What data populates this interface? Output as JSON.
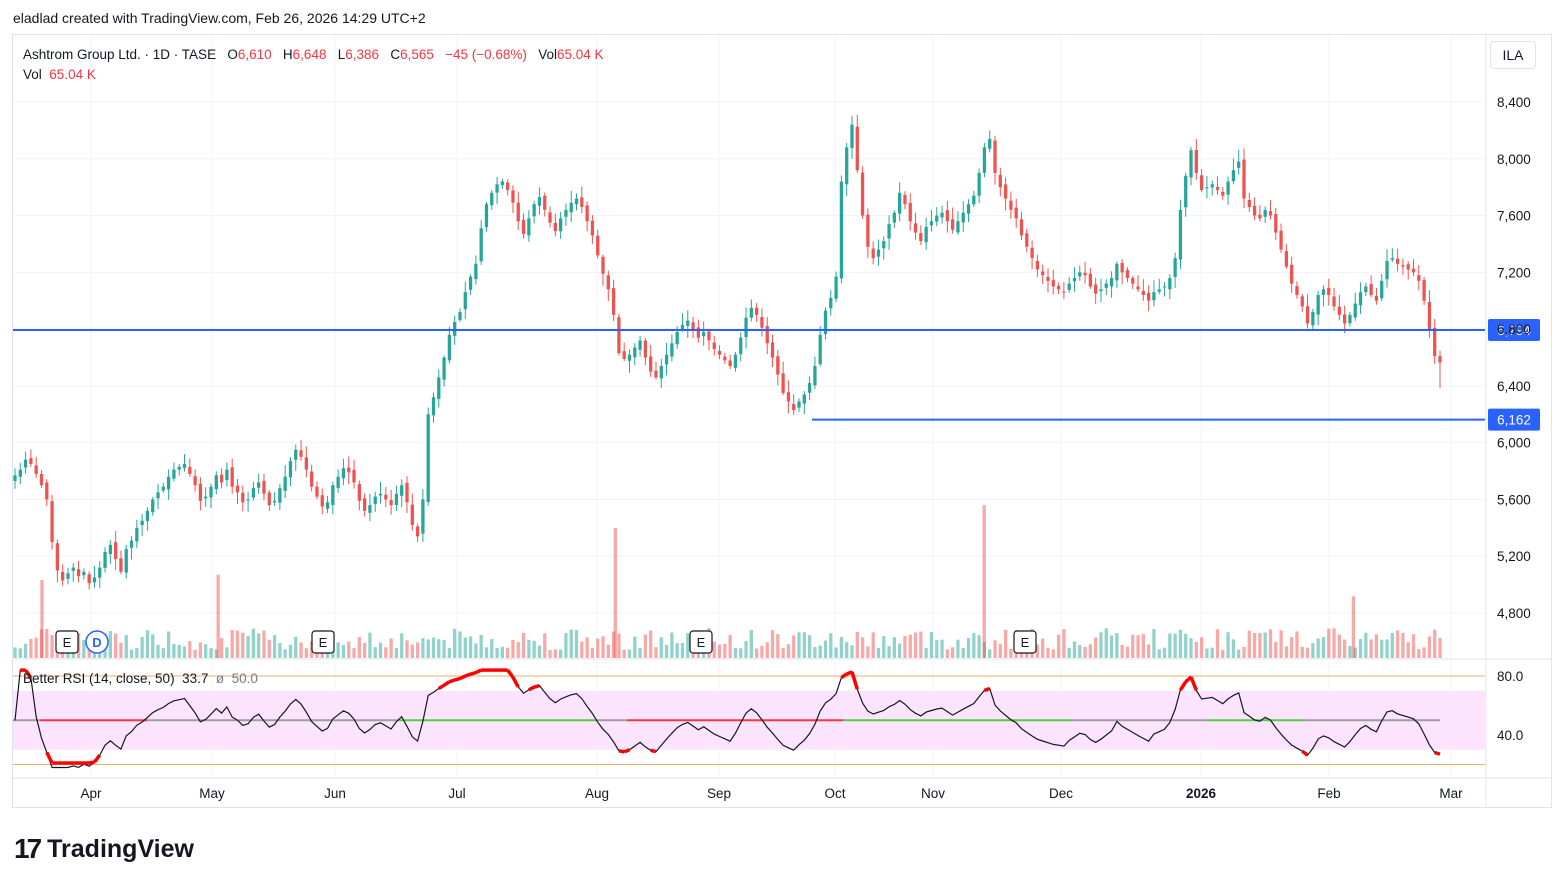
{
  "header": {
    "caption": "eladlad created with TradingView.com, Feb 26, 2026 14:29 UTC+2"
  },
  "legend": {
    "symbol": "Ashtrom Group Ltd. · 1D · TASE",
    "o_label": "O",
    "o_value": "6,610",
    "h_label": "H",
    "h_value": "6,648",
    "l_label": "L",
    "l_value": "6,386",
    "c_label": "C",
    "c_value": "6,565",
    "change": "−45 (−0.68%)",
    "vol_label": "Vol",
    "vol_value": "65.04 K",
    "vol2_label": "Vol",
    "vol2_value": "65.04 K"
  },
  "currency_button": "ILA",
  "rsi_legend": {
    "name": "Better RSI (14, close, 50)",
    "value": "33.7",
    "sep": "ø",
    "mid": "50.0"
  },
  "brand": {
    "logo": "17",
    "name": "TradingView"
  },
  "colors": {
    "up": "#26a69a",
    "down": "#ef5350",
    "line": "#2962ff",
    "rsi": "#131722",
    "rsi_band": "#fce4ff"
  },
  "chart_data": [
    {
      "type": "candlestick",
      "y_ticks": [
        "8,400",
        "8,000",
        "7,600",
        "7,200",
        "6,800",
        "6,400",
        "6,000",
        "5,600",
        "5,200",
        "4,800"
      ],
      "y_tick_values": [
        8400,
        8000,
        7600,
        7200,
        6800,
        6400,
        6000,
        5600,
        5200,
        4800
      ],
      "x_ticks": [
        "Apr",
        "May",
        "Jun",
        "Jul",
        "Aug",
        "Sep",
        "Oct",
        "Nov",
        "Dec",
        "2026",
        "Feb",
        "Mar"
      ],
      "horizontal_lines": [
        {
          "value": 6794,
          "label": "6,794"
        },
        {
          "value": 6162,
          "label": "6,162"
        }
      ],
      "event_markers": [
        {
          "label": "E",
          "month_index": 0.0
        },
        {
          "label": "D",
          "month_index": 0.05
        },
        {
          "label": "E",
          "month_index": 2.0
        },
        {
          "label": "E",
          "month_index": 5.0
        },
        {
          "label": "E",
          "month_index": 7.6
        }
      ],
      "last": {
        "open": 6610,
        "high": 6648,
        "low": 6386,
        "close": 6565
      },
      "close_series": [
        5770,
        5810,
        5880,
        5850,
        5780,
        5700,
        5600,
        5300,
        5100,
        5030,
        5080,
        5120,
        5060,
        5090,
        5010,
        5050,
        5120,
        5230,
        5280,
        5180,
        5090,
        5250,
        5310,
        5400,
        5450,
        5520,
        5600,
        5650,
        5690,
        5760,
        5810,
        5830,
        5850,
        5780,
        5700,
        5590,
        5620,
        5690,
        5770,
        5720,
        5810,
        5690,
        5650,
        5580,
        5600,
        5680,
        5720,
        5640,
        5560,
        5590,
        5680,
        5760,
        5870,
        5950,
        5900,
        5810,
        5690,
        5620,
        5550,
        5580,
        5700,
        5760,
        5820,
        5790,
        5720,
        5590,
        5520,
        5560,
        5620,
        5640,
        5600,
        5560,
        5640,
        5700,
        5580,
        5420,
        5340,
        5600,
        6200,
        6320,
        6460,
        6600,
        6760,
        6850,
        6920,
        7060,
        7170,
        7260,
        7510,
        7680,
        7760,
        7820,
        7840,
        7780,
        7690,
        7560,
        7470,
        7580,
        7680,
        7730,
        7640,
        7550,
        7490,
        7580,
        7640,
        7690,
        7720,
        7660,
        7560,
        7460,
        7320,
        7190,
        7080,
        6900,
        6630,
        6590,
        6620,
        6670,
        6720,
        6600,
        6500,
        6460,
        6540,
        6620,
        6700,
        6780,
        6830,
        6860,
        6800,
        6740,
        6780,
        6720,
        6660,
        6620,
        6580,
        6540,
        6620,
        6740,
        6880,
        6950,
        6900,
        6810,
        6700,
        6600,
        6480,
        6350,
        6290,
        6230,
        6290,
        6340,
        6420,
        6540,
        6760,
        6930,
        7020,
        7170,
        7840,
        8080,
        8240,
        7920,
        7600,
        7380,
        7300,
        7360,
        7420,
        7540,
        7620,
        7760,
        7680,
        7560,
        7480,
        7420,
        7520,
        7560,
        7600,
        7620,
        7560,
        7500,
        7560,
        7620,
        7680,
        7740,
        7900,
        8080,
        8140,
        7900,
        7800,
        7720,
        7640,
        7580,
        7460,
        7380,
        7300,
        7220,
        7180,
        7140,
        7100,
        7080,
        7060,
        7120,
        7160,
        7200,
        7180,
        7100,
        7050,
        7080,
        7120,
        7160,
        7260,
        7200,
        7160,
        7120,
        7080,
        7040,
        7000,
        7060,
        7080,
        7100,
        7160,
        7300,
        7640,
        7880,
        8060,
        7900,
        7780,
        7800,
        7820,
        7780,
        7740,
        7840,
        7920,
        7980,
        7720,
        7660,
        7600,
        7580,
        7640,
        7600,
        7480,
        7360,
        7240,
        7120,
        7040,
        6960,
        6840,
        6920,
        7040,
        7080,
        7040,
        6960,
        6900,
        6840,
        6900,
        6980,
        7060,
        7100,
        7040,
        7000,
        7140,
        7280,
        7300,
        7260,
        7240,
        7220,
        7200,
        7140,
        7000,
        6800,
        6610,
        6565
      ]
    },
    {
      "type": "bar",
      "name": "Vol",
      "note_spikes": [
        {
          "month_index": -0.45,
          "value": 1.2
        },
        {
          "month_index": 1.05,
          "value": 1.28
        },
        {
          "month_index": 4.15,
          "value": 2.0
        },
        {
          "month_index": 7.4,
          "value": 2.35
        },
        {
          "month_index": 10.2,
          "value": 0.95
        }
      ]
    },
    {
      "type": "line",
      "name": "Better RSI (14, close, 50)",
      "y_ticks": [
        "80.0",
        "40.0"
      ],
      "y_tick_values": [
        80,
        40
      ],
      "ylim": [
        18,
        88
      ],
      "band": [
        30,
        70
      ],
      "midline": 50
    }
  ]
}
